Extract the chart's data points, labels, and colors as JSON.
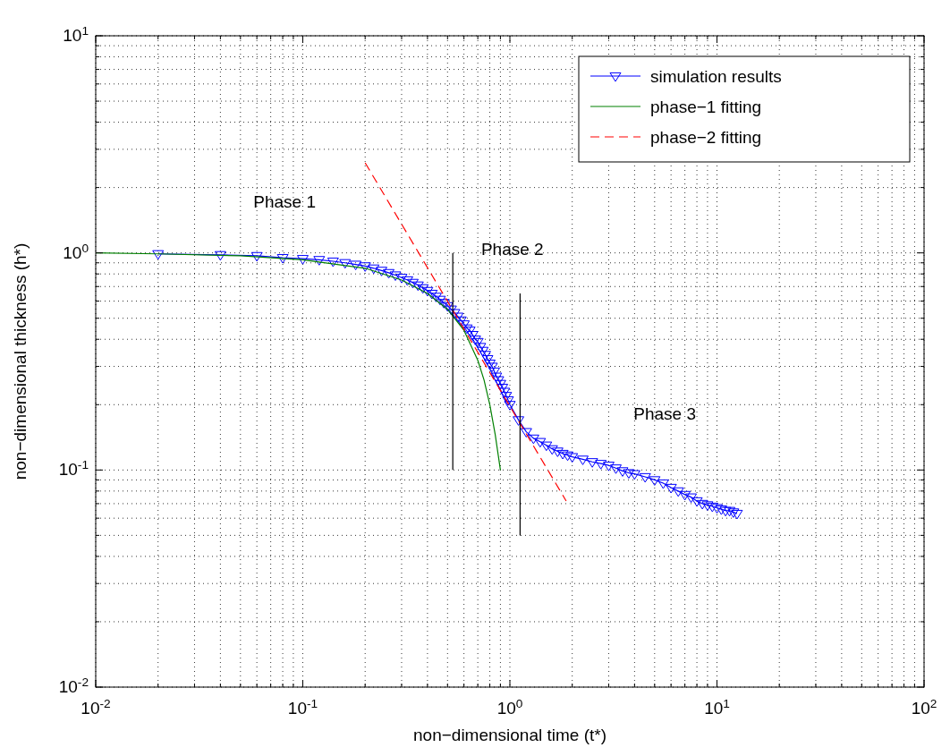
{
  "chart_data": {
    "type": "line",
    "xlabel": "non−dimensional time (t*)",
    "ylabel": "non−dimensional thickness (h*)",
    "log": "xy",
    "grid": true,
    "legend": "top right",
    "xlim": [
      0.01,
      100
    ],
    "ylim": [
      0.01,
      10
    ],
    "xticks": [
      {
        "value": 0.01,
        "label": "10$^{-2}$"
      },
      {
        "value": 0.1,
        "label": "10$^{-1}$"
      },
      {
        "value": 1,
        "label": "10$^{0}$"
      },
      {
        "value": 10,
        "label": "10$^{1}$"
      },
      {
        "value": 100,
        "label": "10$^{2}$"
      }
    ],
    "yticks": [
      {
        "value": 0.01,
        "label": "10$^{-2}$"
      },
      {
        "value": 0.1,
        "label": "10$^{-1}$"
      },
      {
        "value": 1,
        "label": "10$^{0}$"
      },
      {
        "value": 10,
        "label": "10$^{1}$"
      }
    ],
    "series": [
      {
        "name": "simulation results",
        "color": "#0000ff",
        "marker": "triangle",
        "line_style": "solid",
        "x": [
          0.02,
          0.04,
          0.06,
          0.08,
          0.1,
          0.12,
          0.14,
          0.16,
          0.18,
          0.2,
          0.22,
          0.24,
          0.26,
          0.28,
          0.3,
          0.32,
          0.34,
          0.36,
          0.38,
          0.4,
          0.42,
          0.44,
          0.46,
          0.48,
          0.5,
          0.52,
          0.54,
          0.56,
          0.58,
          0.6,
          0.62,
          0.64,
          0.66,
          0.68,
          0.7,
          0.72,
          0.74,
          0.76,
          0.78,
          0.8,
          0.82,
          0.84,
          0.86,
          0.88,
          0.9,
          0.92,
          0.94,
          0.96,
          0.98,
          1.0,
          1.1,
          1.2,
          1.3,
          1.4,
          1.5,
          1.6,
          1.7,
          1.8,
          1.9,
          2.0,
          2.25,
          2.5,
          2.75,
          3,
          3.25,
          3.5,
          3.75,
          4,
          4.5,
          5,
          5.5,
          6,
          6.5,
          7,
          7.5,
          8,
          8.5,
          9,
          9.5,
          10,
          10.5,
          11,
          11.5,
          12,
          12.5
        ],
        "values": [
          0.99,
          0.98,
          0.97,
          0.95,
          0.94,
          0.93,
          0.915,
          0.9,
          0.885,
          0.87,
          0.85,
          0.83,
          0.81,
          0.79,
          0.77,
          0.75,
          0.73,
          0.71,
          0.69,
          0.67,
          0.65,
          0.63,
          0.61,
          0.59,
          0.57,
          0.55,
          0.53,
          0.51,
          0.49,
          0.47,
          0.45,
          0.44,
          0.42,
          0.4,
          0.39,
          0.37,
          0.355,
          0.34,
          0.325,
          0.31,
          0.3,
          0.285,
          0.27,
          0.26,
          0.25,
          0.24,
          0.23,
          0.22,
          0.21,
          0.2,
          0.17,
          0.15,
          0.14,
          0.135,
          0.13,
          0.125,
          0.122,
          0.119,
          0.117,
          0.115,
          0.112,
          0.109,
          0.107,
          0.105,
          0.102,
          0.099,
          0.097,
          0.096,
          0.093,
          0.09,
          0.087,
          0.083,
          0.08,
          0.077,
          0.075,
          0.072,
          0.07,
          0.069,
          0.068,
          0.067,
          0.066,
          0.065,
          0.065,
          0.064,
          0.063
        ]
      },
      {
        "name": "phase−1 fitting",
        "color": "#008000",
        "marker": "none",
        "line_style": "solid",
        "x": [
          0.01,
          0.02,
          0.05,
          0.1,
          0.2,
          0.3,
          0.4,
          0.5,
          0.6,
          0.7,
          0.75,
          0.8,
          0.85,
          0.9
        ],
        "values": [
          1.0,
          0.99,
          0.97,
          0.93,
          0.85,
          0.75,
          0.65,
          0.55,
          0.44,
          0.32,
          0.26,
          0.2,
          0.145,
          0.1
        ]
      },
      {
        "name": "phase−2 fitting",
        "color": "#ff0000",
        "marker": "none",
        "line_style": "dashed",
        "x": [
          0.2,
          1.87
        ],
        "values": [
          2.6,
          0.072
        ]
      },
      {
        "color": "#000000",
        "marker": "none",
        "line_style": "solid",
        "x": [
          0.53,
          0.53
        ],
        "values": [
          1.0,
          0.1
        ]
      },
      {
        "color": "#000000",
        "marker": "none",
        "line_style": "solid",
        "x": [
          1.12,
          1.12
        ],
        "values": [
          0.65,
          0.05
        ]
      }
    ],
    "annotations": [
      "Phase 1",
      "Phase 2",
      "Phase 3"
    ]
  }
}
